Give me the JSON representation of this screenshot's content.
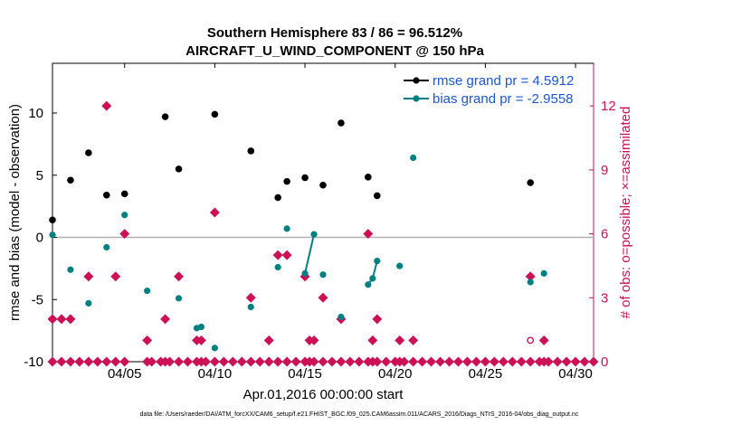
{
  "chart_data": {
    "type": "scatter",
    "title_line1": "Southern Hemisphere 83 / 86 = 96.512%",
    "title_line2": "AIRCRAFT_U_WIND_COMPONENT @ 150 hPa",
    "xlabel": "Apr.01,2016 00:00:00 start",
    "ylabel": "rmse and bias (model - observation)",
    "ylabel_right": "# of obs: o=possible; ×=assimilated",
    "footer": "data file: /Users/raeder/DAI/ATM_forcXX/CAM6_setup/f.e21.FHIST_BGC.f09_025.CAM6assim.011/ACARS_2016/Diags_NTrS_2016-04/obs_diag_output.nc",
    "xlim": [
      1,
      31
    ],
    "ylim": [
      -10,
      14
    ],
    "ylim_right": [
      0,
      14
    ],
    "x_ticks": [
      {
        "x": 5,
        "label": "04/05"
      },
      {
        "x": 10,
        "label": "04/10"
      },
      {
        "x": 15,
        "label": "04/15"
      },
      {
        "x": 20,
        "label": "04/20"
      },
      {
        "x": 25,
        "label": "04/25"
      },
      {
        "x": 30,
        "label": "04/30"
      }
    ],
    "y_ticks": [
      {
        "y": -10,
        "label": "-10"
      },
      {
        "y": -5,
        "label": "-5"
      },
      {
        "y": 0,
        "label": "0"
      },
      {
        "y": 5,
        "label": "5"
      },
      {
        "y": 10,
        "label": "10"
      }
    ],
    "y_ticks_right": [
      {
        "y": 0,
        "label": "0"
      },
      {
        "y": 3,
        "label": "3"
      },
      {
        "y": 6,
        "label": "6"
      },
      {
        "y": 9,
        "label": "9"
      },
      {
        "y": 12,
        "label": "12"
      }
    ],
    "colors": {
      "rmse": "#000000",
      "bias": "#008080",
      "obs": "#cc1155",
      "zero_line": "#b0b0b0",
      "legend_text": "#1a56d6"
    },
    "series": [
      {
        "name": "rmse grand pr = 4.5912",
        "role": "rmse",
        "points": [
          [
            1.0,
            1.4
          ],
          [
            2.0,
            4.6
          ],
          [
            3.0,
            6.8
          ],
          [
            4.0,
            3.4
          ],
          [
            5.0,
            3.5
          ],
          [
            7.25,
            9.7
          ],
          [
            8.0,
            5.5
          ],
          [
            10.0,
            9.9
          ],
          [
            12.0,
            6.95
          ],
          [
            13.5,
            3.2
          ],
          [
            14.0,
            4.5
          ],
          [
            15.0,
            4.8
          ],
          [
            16.0,
            4.2
          ],
          [
            17.0,
            9.2
          ],
          [
            18.5,
            4.85
          ],
          [
            19.0,
            3.35
          ],
          [
            27.5,
            4.4
          ]
        ]
      },
      {
        "name": "bias grand pr = -2.9558",
        "role": "bias",
        "points": [
          [
            1.0,
            0.2
          ],
          [
            2.0,
            -2.6
          ],
          [
            3.0,
            -5.3
          ],
          [
            4.0,
            -0.8
          ],
          [
            5.0,
            1.8
          ],
          [
            6.25,
            -4.3
          ],
          [
            8.0,
            -4.9
          ],
          [
            9.0,
            -7.3
          ],
          [
            9.25,
            -7.2
          ],
          [
            10.0,
            -8.9
          ],
          [
            12.0,
            -5.6
          ],
          [
            13.5,
            -2.4
          ],
          [
            14.0,
            0.7
          ],
          [
            15.0,
            -2.9
          ],
          [
            15.5,
            0.25
          ],
          [
            16.0,
            -3.0
          ],
          [
            17.0,
            -6.4
          ],
          [
            18.5,
            -3.8
          ],
          [
            18.75,
            -3.3
          ],
          [
            19.0,
            -1.9
          ],
          [
            20.25,
            -2.3
          ],
          [
            21.0,
            6.4
          ],
          [
            27.5,
            -3.6
          ],
          [
            28.25,
            -2.9
          ]
        ],
        "segments": [
          [
            [
              9.0,
              -7.3
            ],
            [
              9.25,
              -7.2
            ]
          ],
          [
            [
              15.0,
              -2.9
            ],
            [
              15.5,
              0.25
            ]
          ],
          [
            [
              18.5,
              -3.8
            ],
            [
              18.75,
              -3.3
            ],
            [
              19.0,
              -1.9
            ]
          ]
        ]
      },
      {
        "name": "obs possible",
        "role": "obs_possible",
        "points": [
          [
            27.5,
            1.0
          ]
        ]
      },
      {
        "name": "obs assimilated",
        "role": "obs_assimilated",
        "points": [
          [
            1.0,
            2.0
          ],
          [
            1.5,
            2.0
          ],
          [
            2.0,
            2.0
          ],
          [
            3.0,
            4.0
          ],
          [
            4.0,
            12.0
          ],
          [
            4.5,
            4.0
          ],
          [
            5.0,
            6.0
          ],
          [
            6.25,
            1.0
          ],
          [
            7.25,
            2.0
          ],
          [
            8.0,
            4.0
          ],
          [
            9.0,
            1.0
          ],
          [
            9.25,
            1.0
          ],
          [
            10.0,
            7.0
          ],
          [
            12.0,
            3.0
          ],
          [
            13.0,
            1.0
          ],
          [
            13.5,
            5.0
          ],
          [
            14.0,
            5.0
          ],
          [
            15.0,
            4.0
          ],
          [
            15.25,
            1.0
          ],
          [
            15.5,
            1.0
          ],
          [
            16.0,
            3.0
          ],
          [
            17.0,
            2.0
          ],
          [
            18.5,
            6.0
          ],
          [
            18.75,
            1.0
          ],
          [
            19.0,
            2.0
          ],
          [
            20.25,
            1.0
          ],
          [
            21.0,
            1.0
          ],
          [
            27.5,
            4.0
          ],
          [
            28.25,
            1.0
          ],
          [
            1.0,
            0
          ],
          [
            1.5,
            0
          ],
          [
            2.0,
            0
          ],
          [
            2.5,
            0
          ],
          [
            3.0,
            0
          ],
          [
            3.5,
            0
          ],
          [
            4.0,
            0
          ],
          [
            4.5,
            0
          ],
          [
            5.0,
            0
          ],
          [
            6.25,
            0
          ],
          [
            6.5,
            0
          ],
          [
            7.0,
            0
          ],
          [
            7.25,
            0
          ],
          [
            7.5,
            0
          ],
          [
            8.0,
            0
          ],
          [
            8.5,
            0
          ],
          [
            9.0,
            0
          ],
          [
            9.25,
            0
          ],
          [
            9.5,
            0
          ],
          [
            10.0,
            0
          ],
          [
            10.5,
            0
          ],
          [
            11.0,
            0
          ],
          [
            11.5,
            0
          ],
          [
            12.0,
            0
          ],
          [
            12.5,
            0
          ],
          [
            13.0,
            0
          ],
          [
            13.5,
            0
          ],
          [
            14.0,
            0
          ],
          [
            14.5,
            0
          ],
          [
            15.0,
            0
          ],
          [
            15.25,
            0
          ],
          [
            15.5,
            0
          ],
          [
            16.0,
            0
          ],
          [
            16.5,
            0
          ],
          [
            17.0,
            0
          ],
          [
            17.5,
            0
          ],
          [
            18.0,
            0
          ],
          [
            18.5,
            0
          ],
          [
            18.75,
            0
          ],
          [
            19.0,
            0
          ],
          [
            19.5,
            0
          ],
          [
            20.0,
            0
          ],
          [
            20.25,
            0
          ],
          [
            20.5,
            0
          ],
          [
            21.0,
            0
          ],
          [
            21.5,
            0
          ],
          [
            22.0,
            0
          ],
          [
            22.5,
            0
          ],
          [
            23.0,
            0
          ],
          [
            23.5,
            0
          ],
          [
            24.0,
            0
          ],
          [
            24.5,
            0
          ],
          [
            25.0,
            0
          ],
          [
            25.5,
            0
          ],
          [
            26.0,
            0
          ],
          [
            26.5,
            0
          ],
          [
            27.0,
            0
          ],
          [
            27.5,
            0
          ],
          [
            28.0,
            0
          ],
          [
            28.25,
            0
          ],
          [
            28.5,
            0
          ],
          [
            29.0,
            0
          ],
          [
            29.5,
            0
          ],
          [
            30.0,
            0
          ],
          [
            30.5,
            0
          ],
          [
            31.0,
            0
          ]
        ]
      }
    ],
    "legend": {
      "placement": "top-right",
      "entries": [
        "rmse grand pr = 4.5912",
        "bias grand pr = -2.9558"
      ]
    },
    "zero_line": true,
    "grid": false
  }
}
